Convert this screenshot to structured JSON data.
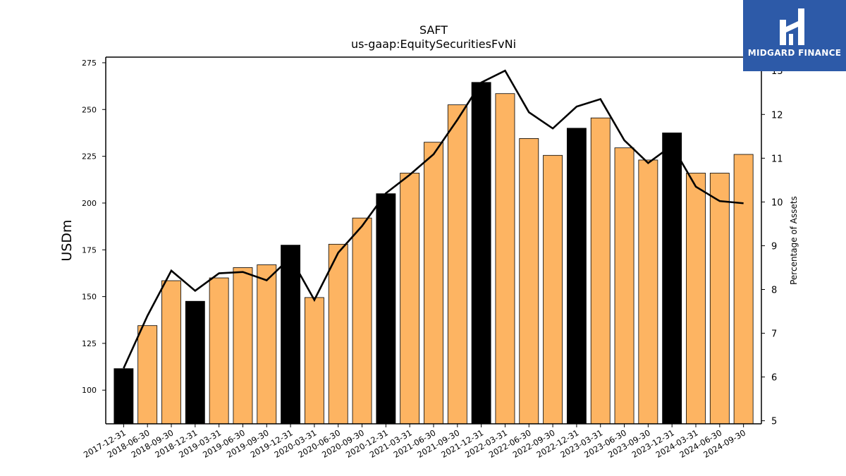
{
  "title": "SAFT",
  "subtitle": "us-gaap:EquitySecuritiesFvNi",
  "logo_text": "MIDGARD FINANCE",
  "colors": {
    "bar_default": "#fdb462",
    "bar_highlight": "#000000",
    "line": "#000000",
    "logo_bg": "#2d5aa8"
  },
  "chart_data": {
    "type": "bar",
    "categories": [
      "2017-12-31",
      "2018-06-30",
      "2018-09-30",
      "2018-12-31",
      "2019-03-31",
      "2019-06-30",
      "2019-09-30",
      "2019-12-31",
      "2020-03-31",
      "2020-06-30",
      "2020-09-30",
      "2020-12-31",
      "2021-03-31",
      "2021-06-30",
      "2021-09-30",
      "2021-12-31",
      "2022-03-31",
      "2022-06-30",
      "2022-09-30",
      "2022-12-31",
      "2023-03-31",
      "2023-06-30",
      "2023-09-30",
      "2023-12-31",
      "2024-03-31",
      "2024-06-30",
      "2024-09-30"
    ],
    "series": [
      {
        "type": "bar",
        "axis": "left",
        "values": [
          111.5,
          134.5,
          158.5,
          147.5,
          160,
          165.5,
          167,
          177.5,
          149.5,
          178,
          192,
          205,
          216,
          232.5,
          252.5,
          264.5,
          258.5,
          234.5,
          225.5,
          240,
          245.5,
          229.5,
          223,
          237.5,
          216,
          216,
          226
        ],
        "highlight_year_end": true
      },
      {
        "type": "line",
        "axis": "right",
        "values": [
          6.2,
          7.4,
          8.43,
          7.97,
          8.37,
          8.4,
          8.21,
          8.73,
          7.76,
          8.84,
          9.45,
          10.2,
          10.62,
          11.09,
          11.88,
          12.73,
          13.0,
          12.05,
          11.68,
          12.18,
          12.35,
          11.41,
          10.89,
          11.29,
          10.35,
          10.02,
          9.97
        ]
      }
    ],
    "ylabel": "USDm",
    "y2label": "Percentage of Assets",
    "ylim": [
      82,
      278
    ],
    "y2lim": [
      4.93,
      13.31
    ],
    "yticks": [
      100,
      125,
      150,
      175,
      200,
      225,
      250,
      275
    ],
    "y2ticks": [
      5,
      6,
      7,
      8,
      9,
      10,
      11,
      12,
      13
    ],
    "grid": false,
    "legend": "none"
  }
}
